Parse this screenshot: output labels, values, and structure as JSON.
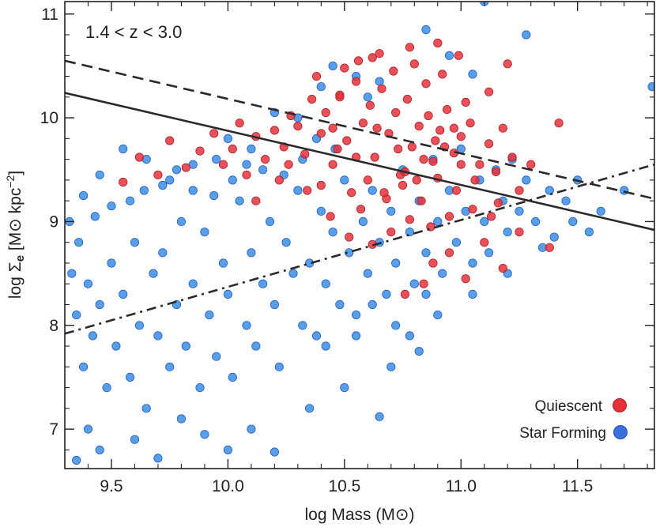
{
  "chart_data": {
    "type": "scatter",
    "title": "",
    "annotation": "1.4 < z < 3.0",
    "xlabel": "log Mass (M⊙)",
    "ylabel": "log Σe [M⊙ kpc⁻²]",
    "ylabel_parts": {
      "log": "log ",
      "sigma": "Σ",
      "sub": "e",
      "rest": " [M⊙ kpc",
      "exp": "−2",
      "close": "]"
    },
    "xlim": [
      9.3,
      11.83
    ],
    "ylim": [
      6.62,
      11.12
    ],
    "xticks": [
      9.5,
      10.0,
      10.5,
      11.0,
      11.5
    ],
    "xtick_labels": [
      "9.5",
      "10.0",
      "10.5",
      "11.0",
      "11.5"
    ],
    "yticks": [
      7,
      8,
      9,
      10,
      11
    ],
    "ytick_labels": [
      "7",
      "8",
      "9",
      "10",
      "11"
    ],
    "grid": false,
    "legend_position": "bottom-right",
    "series": [
      {
        "name": "Quiescent",
        "color": "#e8303a",
        "points": [
          [
            10.42,
            10.05
          ],
          [
            10.48,
            10.22
          ],
          [
            10.51,
            9.78
          ],
          [
            10.55,
            10.35
          ],
          [
            10.58,
            9.95
          ],
          [
            10.61,
            10.12
          ],
          [
            10.63,
            9.62
          ],
          [
            10.66,
            10.28
          ],
          [
            10.69,
            9.85
          ],
          [
            10.72,
            10.05
          ],
          [
            10.74,
            9.45
          ],
          [
            10.77,
            10.18
          ],
          [
            10.79,
            9.72
          ],
          [
            10.82,
            9.92
          ],
          [
            10.85,
            10.33
          ],
          [
            10.88,
            9.58
          ],
          [
            10.91,
            9.88
          ],
          [
            10.94,
            10.08
          ],
          [
            10.97,
            9.66
          ],
          [
            11.0,
            9.82
          ],
          [
            11.04,
            9.95
          ],
          [
            11.08,
            9.55
          ],
          [
            11.12,
            9.75
          ],
          [
            11.18,
            9.9
          ],
          [
            10.45,
            9.55
          ],
          [
            10.53,
            9.28
          ],
          [
            10.6,
            9.4
          ],
          [
            10.68,
            9.22
          ],
          [
            10.75,
            9.35
          ],
          [
            10.83,
            9.2
          ],
          [
            10.9,
            9.42
          ],
          [
            10.98,
            9.3
          ],
          [
            10.4,
            9.85
          ],
          [
            10.36,
            10.18
          ],
          [
            10.33,
            9.65
          ],
          [
            10.3,
            9.92
          ],
          [
            10.27,
            10.02
          ],
          [
            10.24,
            9.72
          ],
          [
            10.2,
            9.88
          ],
          [
            10.16,
            9.6
          ],
          [
            10.12,
            9.82
          ],
          [
            10.08,
            9.45
          ],
          [
            10.05,
            9.95
          ],
          [
            10.02,
            9.7
          ],
          [
            9.98,
            9.55
          ],
          [
            9.94,
            9.85
          ],
          [
            9.88,
            9.68
          ],
          [
            9.82,
            9.52
          ],
          [
            9.75,
            9.78
          ],
          [
            9.7,
            9.45
          ],
          [
            9.62,
            9.62
          ],
          [
            9.55,
            9.38
          ],
          [
            10.56,
            10.55
          ],
          [
            10.65,
            10.62
          ],
          [
            10.71,
            10.45
          ],
          [
            10.8,
            10.52
          ],
          [
            10.92,
            10.42
          ],
          [
            10.5,
            10.48
          ],
          [
            10.38,
            10.4
          ],
          [
            10.86,
            10.02
          ],
          [
            10.93,
            9.72
          ],
          [
            11.06,
            9.4
          ],
          [
            11.15,
            9.48
          ],
          [
            11.22,
            9.62
          ],
          [
            11.3,
            9.55
          ],
          [
            11.25,
            9.3
          ],
          [
            11.16,
            9.18
          ],
          [
            11.05,
            9.12
          ],
          [
            10.95,
            9.05
          ],
          [
            10.87,
            8.95
          ],
          [
            10.78,
            9.02
          ],
          [
            10.7,
            8.9
          ],
          [
            10.88,
            8.6
          ],
          [
            10.95,
            8.7
          ],
          [
            11.02,
            8.45
          ],
          [
            11.1,
            8.8
          ],
          [
            11.18,
            8.55
          ],
          [
            11.25,
            8.9
          ],
          [
            11.38,
            8.75
          ],
          [
            11.42,
            9.95
          ],
          [
            10.62,
            8.78
          ],
          [
            10.52,
            8.85
          ],
          [
            10.44,
            9.05
          ],
          [
            10.57,
            9.12
          ],
          [
            10.67,
            9.28
          ],
          [
            10.76,
            9.48
          ],
          [
            10.84,
            9.6
          ],
          [
            10.97,
            9.9
          ],
          [
            11.02,
            10.15
          ],
          [
            11.12,
            10.25
          ],
          [
            11.2,
            10.52
          ],
          [
            10.99,
            10.6
          ],
          [
            10.9,
            10.72
          ],
          [
            10.78,
            10.68
          ],
          [
            10.62,
            10.58
          ],
          [
            10.48,
            10.2
          ],
          [
            10.45,
            9.9
          ],
          [
            10.55,
            9.62
          ],
          [
            10.64,
            9.9
          ],
          [
            10.73,
            9.7
          ],
          [
            10.81,
            9.4
          ],
          [
            10.89,
            9.78
          ],
          [
            11.0,
            9.55
          ],
          [
            10.76,
            8.3
          ],
          [
            10.84,
            8.4
          ],
          [
            11.13,
            9.05
          ],
          [
            10.34,
            9.3
          ],
          [
            10.22,
            9.4
          ],
          [
            10.12,
            9.2
          ],
          [
            10.26,
            9.55
          ],
          [
            10.4,
            9.35
          ],
          [
            10.47,
            9.7
          ]
        ]
      },
      {
        "name": "Star Forming",
        "color": "#3b8de6",
        "points": [
          [
            9.35,
            8.1
          ],
          [
            9.38,
            7.6
          ],
          [
            9.4,
            8.4
          ],
          [
            9.42,
            7.9
          ],
          [
            9.45,
            8.2
          ],
          [
            9.48,
            7.4
          ],
          [
            9.5,
            8.6
          ],
          [
            9.52,
            7.8
          ],
          [
            9.55,
            8.3
          ],
          [
            9.58,
            7.5
          ],
          [
            9.6,
            8.8
          ],
          [
            9.62,
            8.0
          ],
          [
            9.65,
            7.2
          ],
          [
            9.68,
            8.5
          ],
          [
            9.7,
            7.9
          ],
          [
            9.72,
            8.7
          ],
          [
            9.75,
            7.6
          ],
          [
            9.78,
            8.2
          ],
          [
            9.8,
            9.0
          ],
          [
            9.82,
            7.8
          ],
          [
            9.85,
            8.4
          ],
          [
            9.88,
            7.4
          ],
          [
            9.9,
            8.9
          ],
          [
            9.92,
            8.1
          ],
          [
            9.95,
            7.7
          ],
          [
            9.98,
            8.6
          ],
          [
            10.0,
            8.3
          ],
          [
            10.02,
            7.5
          ],
          [
            10.05,
            9.2
          ],
          [
            10.08,
            8.0
          ],
          [
            10.1,
            8.7
          ],
          [
            10.12,
            7.8
          ],
          [
            10.15,
            8.4
          ],
          [
            10.18,
            9.0
          ],
          [
            10.2,
            8.2
          ],
          [
            10.22,
            7.6
          ],
          [
            10.25,
            8.8
          ],
          [
            10.28,
            8.5
          ],
          [
            10.3,
            9.3
          ],
          [
            10.32,
            8.0
          ],
          [
            10.35,
            8.6
          ],
          [
            10.38,
            7.9
          ],
          [
            10.4,
            9.1
          ],
          [
            10.42,
            8.4
          ],
          [
            10.45,
            8.9
          ],
          [
            10.48,
            8.2
          ],
          [
            10.5,
            9.4
          ],
          [
            10.52,
            8.7
          ],
          [
            10.55,
            8.1
          ],
          [
            10.58,
            9.0
          ],
          [
            10.6,
            8.5
          ],
          [
            10.62,
            9.3
          ],
          [
            10.65,
            8.8
          ],
          [
            10.68,
            8.3
          ],
          [
            10.7,
            9.1
          ],
          [
            10.72,
            8.6
          ],
          [
            10.75,
            9.5
          ],
          [
            10.78,
            8.9
          ],
          [
            10.8,
            8.4
          ],
          [
            10.82,
            9.2
          ],
          [
            10.85,
            8.7
          ],
          [
            10.88,
            9.6
          ],
          [
            10.9,
            9.0
          ],
          [
            10.92,
            8.5
          ],
          [
            10.95,
            9.3
          ],
          [
            10.98,
            8.8
          ],
          [
            11.0,
            9.7
          ],
          [
            11.02,
            9.1
          ],
          [
            11.05,
            8.6
          ],
          [
            11.08,
            9.4
          ],
          [
            11.1,
            9.0
          ],
          [
            11.12,
            8.7
          ],
          [
            11.15,
            9.5
          ],
          [
            11.18,
            9.2
          ],
          [
            11.2,
            8.9
          ],
          [
            11.22,
            9.6
          ],
          [
            11.25,
            9.1
          ],
          [
            11.28,
            9.4
          ],
          [
            11.32,
            9.0
          ],
          [
            11.38,
            9.3
          ],
          [
            11.45,
            9.2
          ],
          [
            11.5,
            9.4
          ],
          [
            11.82,
            10.3
          ],
          [
            11.28,
            10.8
          ],
          [
            11.1,
            11.12
          ],
          [
            10.85,
            10.85
          ],
          [
            10.95,
            10.6
          ],
          [
            11.05,
            10.42
          ],
          [
            9.4,
            7.0
          ],
          [
            9.45,
            6.8
          ],
          [
            9.35,
            6.7
          ],
          [
            9.6,
            6.9
          ],
          [
            9.7,
            6.72
          ],
          [
            9.8,
            7.1
          ],
          [
            9.9,
            6.95
          ],
          [
            10.0,
            6.8
          ],
          [
            10.1,
            7.0
          ],
          [
            10.2,
            6.78
          ],
          [
            10.35,
            7.2
          ],
          [
            10.5,
            7.4
          ],
          [
            10.65,
            7.12
          ],
          [
            10.42,
            7.8
          ],
          [
            10.55,
            7.9
          ],
          [
            10.7,
            7.6
          ],
          [
            10.78,
            7.9
          ],
          [
            10.82,
            7.75
          ],
          [
            10.9,
            8.1
          ],
          [
            10.62,
            8.2
          ],
          [
            10.72,
            8.0
          ],
          [
            10.85,
            8.3
          ],
          [
            10.4,
            10.3
          ],
          [
            10.45,
            10.5
          ],
          [
            10.55,
            10.4
          ],
          [
            10.6,
            10.2
          ],
          [
            10.65,
            10.35
          ],
          [
            10.3,
            10.0
          ],
          [
            10.2,
            10.05
          ],
          [
            10.1,
            9.7
          ],
          [
            10.0,
            9.8
          ],
          [
            9.95,
            9.6
          ],
          [
            9.85,
            9.55
          ],
          [
            9.75,
            9.4
          ],
          [
            9.65,
            9.6
          ],
          [
            9.55,
            9.7
          ],
          [
            9.45,
            9.45
          ],
          [
            9.38,
            9.25
          ],
          [
            9.32,
            9.0
          ],
          [
            9.33,
            8.5
          ],
          [
            9.36,
            8.8
          ],
          [
            9.43,
            9.05
          ],
          [
            9.5,
            9.15
          ],
          [
            9.58,
            9.2
          ],
          [
            9.64,
            9.3
          ],
          [
            9.72,
            9.35
          ],
          [
            9.78,
            9.5
          ],
          [
            9.85,
            9.3
          ],
          [
            9.94,
            9.25
          ],
          [
            10.02,
            9.4
          ],
          [
            10.08,
            9.55
          ],
          [
            10.15,
            9.5
          ],
          [
            10.24,
            9.45
          ],
          [
            10.32,
            9.6
          ],
          [
            10.38,
            9.8
          ],
          [
            10.46,
            9.7
          ],
          [
            11.35,
            8.75
          ],
          [
            11.4,
            8.85
          ],
          [
            11.55,
            8.9
          ],
          [
            11.48,
            9.0
          ],
          [
            11.6,
            9.1
          ],
          [
            11.7,
            9.3
          ],
          [
            11.2,
            8.5
          ],
          [
            11.05,
            8.3
          ]
        ]
      }
    ],
    "lines": [
      {
        "name": "",
        "style": "solid",
        "color": "#2a2a2a",
        "x": [
          9.3,
          11.83
        ],
        "y": [
          10.24,
          8.92
        ]
      },
      {
        "name": "",
        "style": "dashed",
        "color": "#2a2a2a",
        "x": [
          9.3,
          11.83
        ],
        "y": [
          10.55,
          9.22
        ]
      },
      {
        "name": "",
        "style": "dashdot",
        "color": "#2a2a2a",
        "x": [
          9.3,
          11.83
        ],
        "y": [
          7.92,
          9.55
        ]
      }
    ]
  }
}
